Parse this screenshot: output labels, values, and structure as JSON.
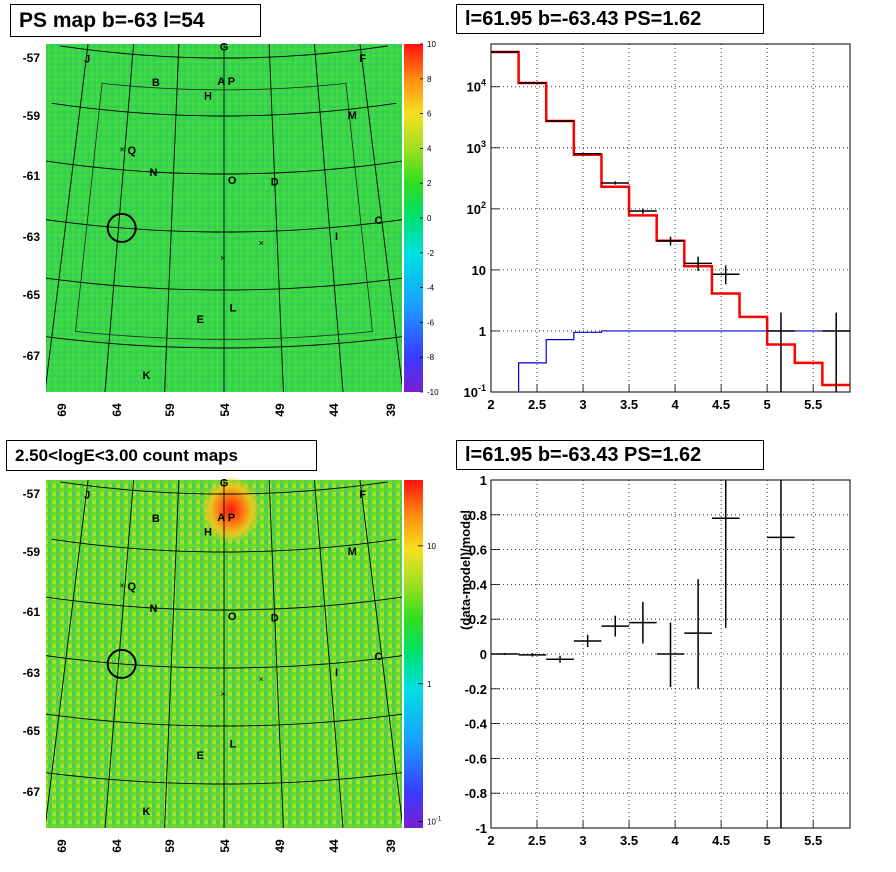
{
  "panels": {
    "top_left": {
      "title": "PS map b=-63 l=54"
    },
    "top_right": {
      "title": "l=61.95 b=-63.43 PS=1.62"
    },
    "bottom_left": {
      "title": "2.50<logE<3.00 count maps"
    },
    "bottom_right": {
      "title": "l=61.95 b=-63.43 PS=1.62"
    }
  },
  "sky_map": {
    "lat_labels": [
      "-57",
      "-59",
      "-61",
      "-63",
      "-65",
      "-67"
    ],
    "lon_labels": [
      "69",
      "64",
      "59",
      "54",
      "49",
      "44",
      "39"
    ],
    "source_labels": [
      {
        "label": "G",
        "l": 54.0,
        "b": -56.6
      },
      {
        "label": "J",
        "l": 68.9,
        "b": -57.3
      },
      {
        "label": "F",
        "l": 38.9,
        "b": -57.3
      },
      {
        "label": "B",
        "l": 61.3,
        "b": -57.9
      },
      {
        "label": "A",
        "l": 54.3,
        "b": -57.8
      },
      {
        "label": "P",
        "l": 53.2,
        "b": -57.8
      },
      {
        "label": "H",
        "l": 55.7,
        "b": -58.3
      },
      {
        "label": "M",
        "l": 40.7,
        "b": -59.2
      },
      {
        "label": "Q",
        "l": 63.3,
        "b": -60.3
      },
      {
        "label": "N",
        "l": 61.0,
        "b": -61.0
      },
      {
        "label": "O",
        "l": 53.2,
        "b": -61.2
      },
      {
        "label": "D",
        "l": 49.0,
        "b": -61.3
      },
      {
        "label": "C",
        "l": 39.3,
        "b": -62.9
      },
      {
        "label": "I",
        "l": 43.4,
        "b": -63.3
      },
      {
        "label": "L",
        "l": 53.2,
        "b": -65.6
      },
      {
        "label": "E",
        "l": 56.1,
        "b": -66.0
      },
      {
        "label": "K",
        "l": 60.6,
        "b": -68.0
      }
    ],
    "cross_marks": [
      {
        "l": 64.3,
        "b": -60.3
      },
      {
        "l": 50.5,
        "b": -63.4
      },
      {
        "l": 54.1,
        "b": -63.9
      }
    ],
    "circle": {
      "l": 63.7,
      "b": -63.0
    }
  },
  "colorbars": {
    "linear_ticks": [
      "10",
      "8",
      "6",
      "4",
      "2",
      "0",
      "-2",
      "-4",
      "-6",
      "-8",
      "-10"
    ],
    "log_ticks": [
      {
        "base": "10",
        "exp": "",
        "value": 10
      },
      {
        "base": "1",
        "exp": "",
        "value": 1
      },
      {
        "base": "10",
        "exp": "-1",
        "value": 0.1
      }
    ]
  },
  "chart_data": [
    {
      "type": "line",
      "panel": "top_right",
      "title": "l=61.95 b=-63.43 PS=1.62",
      "xlim": [
        2.0,
        5.9
      ],
      "ylim_log10": [
        -1,
        4.7
      ],
      "y_log": true,
      "grid": true,
      "x_ticks": [
        "2",
        "2.5",
        "3",
        "3.5",
        "4",
        "4.5",
        "5",
        "5.5"
      ],
      "y_ticks": [
        {
          "base": "10",
          "exp": "-1",
          "value": 0.1
        },
        {
          "base": "1",
          "exp": "",
          "value": 1
        },
        {
          "base": "10",
          "exp": "",
          "value": 10
        },
        {
          "base": "10",
          "exp": "2",
          "value": 100
        },
        {
          "base": "10",
          "exp": "3",
          "value": 1000
        },
        {
          "base": "10",
          "exp": "4",
          "value": 10000
        }
      ],
      "model_total_red": {
        "edges": [
          2.0,
          2.3,
          2.6,
          2.9,
          3.2,
          3.5,
          3.8,
          4.1,
          4.4,
          4.7,
          5.0,
          5.3,
          5.6,
          5.9
        ],
        "values": [
          37000,
          11500,
          2750,
          770,
          230,
          78,
          30,
          11.5,
          4.1,
          1.7,
          0.6,
          0.3,
          0.13
        ]
      },
      "background_blue": {
        "edges": [
          2.3,
          2.6,
          2.9,
          3.2,
          5.9
        ],
        "values": [
          0.3,
          0.72,
          0.95,
          1.0
        ]
      },
      "data_points": [
        {
          "x": 2.15,
          "y": 37000,
          "xerr": 0.15,
          "ylo": 36800,
          "yhi": 37200
        },
        {
          "x": 2.45,
          "y": 11500,
          "xerr": 0.15,
          "ylo": 11400,
          "yhi": 11600
        },
        {
          "x": 2.75,
          "y": 2750,
          "xerr": 0.15,
          "ylo": 2700,
          "yhi": 2800
        },
        {
          "x": 3.05,
          "y": 800,
          "xerr": 0.15,
          "ylo": 775,
          "yhi": 825
        },
        {
          "x": 3.35,
          "y": 265,
          "xerr": 0.15,
          "ylo": 250,
          "yhi": 282
        },
        {
          "x": 3.65,
          "y": 92,
          "xerr": 0.15,
          "ylo": 83,
          "yhi": 101
        },
        {
          "x": 3.95,
          "y": 30,
          "xerr": 0.15,
          "ylo": 25,
          "yhi": 35
        },
        {
          "x": 4.25,
          "y": 12.8,
          "xerr": 0.15,
          "ylo": 9.6,
          "yhi": 16.5
        },
        {
          "x": 4.55,
          "y": 8.5,
          "xerr": 0.15,
          "ylo": 5.8,
          "yhi": 11.8
        },
        {
          "x": 5.15,
          "y": 1.0,
          "xerr": 0.15,
          "ylo": 0.1,
          "yhi": 2.0
        },
        {
          "x": 5.75,
          "y": 1.0,
          "xerr": 0.15,
          "ylo": 0.1,
          "yhi": 2.0
        }
      ]
    },
    {
      "type": "scatter",
      "panel": "bottom_right",
      "title": "l=61.95 b=-63.43 PS=1.62",
      "ylabel": "(data-model)/model",
      "xlim": [
        2.0,
        5.9
      ],
      "ylim": [
        -1.0,
        1.0
      ],
      "grid": true,
      "x_ticks": [
        "2",
        "2.5",
        "3",
        "3.5",
        "4",
        "4.5",
        "5",
        "5.5"
      ],
      "y_ticks": [
        "-1",
        "-0.8",
        "-0.6",
        "-0.4",
        "-0.2",
        "0",
        "0.2",
        "0.4",
        "0.6",
        "0.8",
        "1"
      ],
      "points": [
        {
          "x": 2.15,
          "y": 0.0,
          "xerr": 0.15,
          "ylo": -0.005,
          "yhi": 0.005
        },
        {
          "x": 2.45,
          "y": -0.005,
          "xerr": 0.15,
          "ylo": -0.015,
          "yhi": 0.005
        },
        {
          "x": 2.75,
          "y": -0.03,
          "xerr": 0.15,
          "ylo": -0.05,
          "yhi": -0.01
        },
        {
          "x": 3.05,
          "y": 0.075,
          "xerr": 0.15,
          "ylo": 0.04,
          "yhi": 0.11
        },
        {
          "x": 3.35,
          "y": 0.16,
          "xerr": 0.15,
          "ylo": 0.1,
          "yhi": 0.22
        },
        {
          "x": 3.65,
          "y": 0.18,
          "xerr": 0.15,
          "ylo": 0.06,
          "yhi": 0.3
        },
        {
          "x": 3.95,
          "y": 0.0,
          "xerr": 0.15,
          "ylo": -0.19,
          "yhi": 0.18
        },
        {
          "x": 4.25,
          "y": 0.12,
          "xerr": 0.15,
          "ylo": -0.2,
          "yhi": 0.43
        },
        {
          "x": 4.55,
          "y": 0.78,
          "xerr": 0.15,
          "ylo": 0.15,
          "yhi": 1.0
        },
        {
          "x": 5.15,
          "y": 0.67,
          "xerr": 0.15,
          "ylo": -1.0,
          "yhi": 1.0
        }
      ]
    }
  ]
}
